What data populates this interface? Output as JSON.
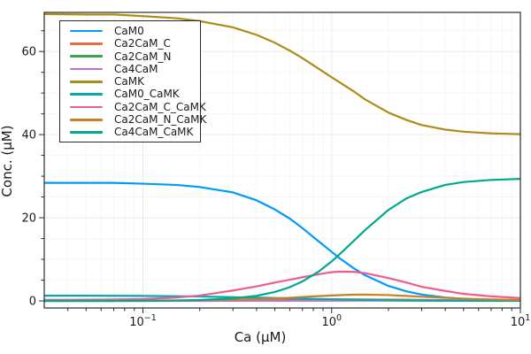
{
  "chart_data": {
    "type": "line",
    "title": "",
    "xlabel": "Ca (μM)",
    "ylabel": "Conc. (μM)",
    "x_scale": "log10",
    "xlim": [
      0.03,
      10
    ],
    "ylim": [
      -1.7,
      69.4
    ],
    "x_major_ticks": [
      {
        "value": 0.1,
        "mantissa": "10",
        "exponent": "−1"
      },
      {
        "value": 1,
        "mantissa": "10",
        "exponent": "0"
      },
      {
        "value": 10,
        "mantissa": "10",
        "exponent": "1"
      }
    ],
    "y_major_ticks": [
      0,
      20,
      40,
      60
    ],
    "y_minor_step": 5,
    "grid": {
      "major": true,
      "minor": true
    },
    "legend_position": "top-left",
    "frame_color": "#2a2a2a",
    "x": [
      0.03,
      0.05,
      0.07,
      0.1,
      0.15,
      0.2,
      0.3,
      0.4,
      0.5,
      0.6,
      0.7,
      0.85,
      1.0,
      1.1,
      1.3,
      1.5,
      2.0,
      2.5,
      3.0,
      4.0,
      5.0,
      7.0,
      10.0
    ],
    "series": [
      {
        "name": "CaM0",
        "color": "#009AFA",
        "values": [
          28.4,
          28.4,
          28.4,
          28.2,
          27.9,
          27.4,
          26.1,
          24.2,
          22.0,
          19.8,
          17.5,
          14.4,
          11.8,
          10.3,
          7.95,
          6.2,
          3.6,
          2.27,
          1.54,
          0.82,
          0.5,
          0.23,
          0.1
        ]
      },
      {
        "name": "Ca2CaM_C",
        "color": "#E36F47",
        "values": [
          0.02,
          0.03,
          0.04,
          0.05,
          0.08,
          0.1,
          0.16,
          0.21,
          0.25,
          0.29,
          0.32,
          0.35,
          0.37,
          0.38,
          0.38,
          0.36,
          0.33,
          0.29,
          0.25,
          0.19,
          0.15,
          0.1,
          0.08
        ]
      },
      {
        "name": "Ca2CaM_N",
        "color": "#3DA44E",
        "values": [
          0.005,
          0.006,
          0.008,
          0.01,
          0.02,
          0.03,
          0.04,
          0.06,
          0.07,
          0.08,
          0.08,
          0.09,
          0.1,
          0.1,
          0.11,
          0.11,
          0.1,
          0.09,
          0.07,
          0.05,
          0.04,
          0.03,
          0.02
        ]
      },
      {
        "name": "Ca4CaM",
        "color": "#C271D2",
        "values": [
          0.0,
          0.0,
          0.0,
          0.01,
          0.01,
          0.01,
          0.02,
          0.02,
          0.03,
          0.03,
          0.04,
          0.04,
          0.05,
          0.06,
          0.07,
          0.08,
          0.1,
          0.11,
          0.13,
          0.14,
          0.15,
          0.16,
          0.16
        ]
      },
      {
        "name": "CaMK",
        "color": "#AC8D18",
        "values": [
          69.0,
          68.9,
          68.9,
          68.5,
          68.0,
          67.3,
          65.8,
          64.0,
          62.1,
          60.2,
          58.4,
          55.9,
          53.8,
          52.6,
          50.5,
          48.5,
          45.3,
          43.5,
          42.3,
          41.2,
          40.7,
          40.3,
          40.1
        ]
      },
      {
        "name": "CaM0_CaMK",
        "color": "#00AAAE",
        "values": [
          1.25,
          1.25,
          1.22,
          1.2,
          1.12,
          1.05,
          0.9,
          0.8,
          0.7,
          0.62,
          0.55,
          0.47,
          0.4,
          0.36,
          0.3,
          0.25,
          0.15,
          0.11,
          0.08,
          0.05,
          0.04,
          0.02,
          0.02
        ]
      },
      {
        "name": "Ca2CaM_C_CaMK",
        "color": "#ED5D92",
        "values": [
          0.25,
          0.3,
          0.35,
          0.45,
          0.8,
          1.3,
          2.5,
          3.5,
          4.4,
          5.1,
          5.7,
          6.4,
          6.9,
          7.05,
          7.0,
          6.7,
          5.5,
          4.4,
          3.4,
          2.4,
          1.7,
          1.1,
          0.7
        ]
      },
      {
        "name": "Ca2CaM_N_CaMK",
        "color": "#C68125",
        "values": [
          0.03,
          0.04,
          0.05,
          0.08,
          0.12,
          0.18,
          0.3,
          0.45,
          0.6,
          0.75,
          0.95,
          1.15,
          1.3,
          1.38,
          1.5,
          1.52,
          1.4,
          1.2,
          1.0,
          0.75,
          0.55,
          0.35,
          0.25
        ]
      },
      {
        "name": "Ca4CaM_CaMK",
        "color": "#00A98D",
        "values": [
          0.0,
          0.01,
          0.01,
          0.04,
          0.1,
          0.21,
          0.6,
          1.24,
          2.15,
          3.3,
          4.7,
          7.0,
          9.5,
          11.2,
          14.3,
          17.0,
          21.9,
          24.7,
          26.2,
          27.9,
          28.6,
          29.1,
          29.35
        ]
      }
    ]
  }
}
